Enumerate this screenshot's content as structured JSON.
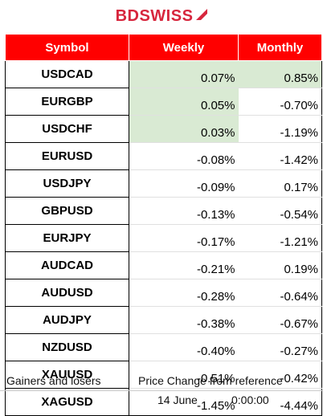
{
  "brand": {
    "name": "BDSWISS",
    "accent": "#d7263d",
    "header_bg": "#ff0000",
    "highlight": "#d9ead3"
  },
  "table": {
    "headers": {
      "symbol": "Symbol",
      "weekly": "Weekly",
      "monthly": "Monthly"
    },
    "rows": [
      {
        "symbol": "USDCAD",
        "weekly": "0.07%",
        "monthly": "0.85%",
        "weekly_highlight": true,
        "monthly_highlight": true
      },
      {
        "symbol": "EURGBP",
        "weekly": "0.05%",
        "monthly": "-0.70%",
        "weekly_highlight": true,
        "monthly_highlight": false
      },
      {
        "symbol": "USDCHF",
        "weekly": "0.03%",
        "monthly": "-1.19%",
        "weekly_highlight": true,
        "monthly_highlight": false
      },
      {
        "symbol": "EURUSD",
        "weekly": "-0.08%",
        "monthly": "-1.42%",
        "weekly_highlight": false,
        "monthly_highlight": false
      },
      {
        "symbol": "USDJPY",
        "weekly": "-0.09%",
        "monthly": "0.17%",
        "weekly_highlight": false,
        "monthly_highlight": false
      },
      {
        "symbol": "GBPUSD",
        "weekly": "-0.13%",
        "monthly": "-0.54%",
        "weekly_highlight": false,
        "monthly_highlight": false
      },
      {
        "symbol": "EURJPY",
        "weekly": "-0.17%",
        "monthly": "-1.21%",
        "weekly_highlight": false,
        "monthly_highlight": false
      },
      {
        "symbol": "AUDCAD",
        "weekly": "-0.21%",
        "monthly": "0.19%",
        "weekly_highlight": false,
        "monthly_highlight": false
      },
      {
        "symbol": "AUDUSD",
        "weekly": "-0.28%",
        "monthly": "-0.64%",
        "weekly_highlight": false,
        "monthly_highlight": false
      },
      {
        "symbol": "AUDJPY",
        "weekly": "-0.38%",
        "monthly": "-0.67%",
        "weekly_highlight": false,
        "monthly_highlight": false
      },
      {
        "symbol": "NZDUSD",
        "weekly": "-0.40%",
        "monthly": "-0.27%",
        "weekly_highlight": false,
        "monthly_highlight": false
      },
      {
        "symbol": "XAUUSD",
        "weekly": "-0.51%",
        "monthly": "-0.42%",
        "weekly_highlight": false,
        "monthly_highlight": false
      },
      {
        "symbol": "XAGUSD",
        "weekly": "-1.45%",
        "monthly": "-4.44%",
        "weekly_highlight": false,
        "monthly_highlight": false
      }
    ]
  },
  "footer": {
    "gainers_losers": "Gainers and losers",
    "price_change": "Price Change from reference",
    "date": "14 June",
    "time": "0:00:00"
  }
}
